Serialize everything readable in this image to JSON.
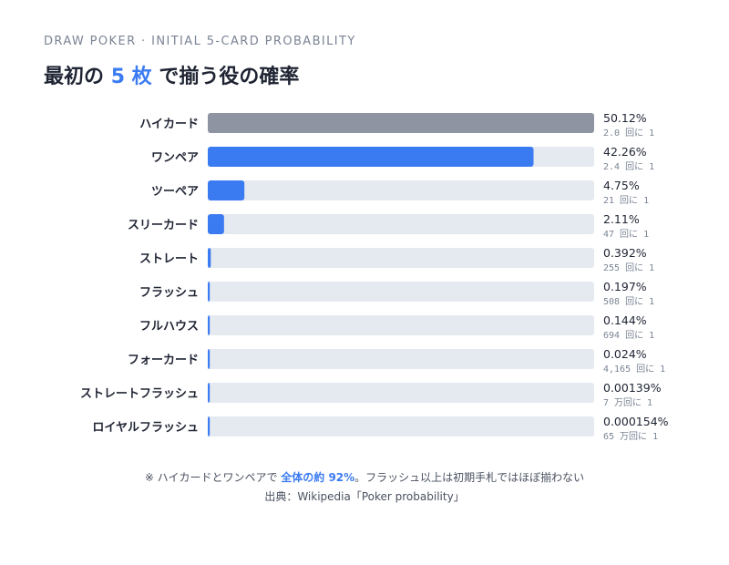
{
  "header": {
    "kicker": "DRAW POKER · INITIAL 5-CARD PROBABILITY",
    "title_prefix": "最初の",
    "title_accent": "5 枚",
    "title_suffix": "で揃う役の確率"
  },
  "colors": {
    "top_bar": "#8e94a2",
    "bar": "#3b7bf2",
    "track": "#e5e9f0",
    "accent": "#3b7bf2"
  },
  "chart_data": {
    "type": "bar",
    "orientation": "horizontal",
    "xlim": [
      0,
      50.12
    ],
    "categories": [
      "ハイカード",
      "ワンペア",
      "ツーペア",
      "スリーカード",
      "ストレート",
      "フラッシュ",
      "フルハウス",
      "フォーカード",
      "ストレートフラッシュ",
      "ロイヤルフラッシュ"
    ],
    "values": [
      50.12,
      42.26,
      4.75,
      2.11,
      0.392,
      0.197,
      0.144,
      0.024,
      0.00139,
      0.000154
    ],
    "value_labels": [
      "50.12%",
      "42.26%",
      "4.75%",
      "2.11%",
      "0.392%",
      "0.197%",
      "0.144%",
      "0.024%",
      "0.00139%",
      "0.000154%"
    ],
    "odds_labels": [
      "2.0 回に 1",
      "2.4 回に 1",
      "21 回に 1",
      "47 回に 1",
      "255 回に 1",
      "508 回に 1",
      "694 回に 1",
      "4,165 回に 1",
      "7 万回に 1",
      "65 万回に 1"
    ]
  },
  "footnote": {
    "prefix": "※ ハイカードとワンペアで ",
    "highlight": "全体の約 92%",
    "suffix": "。フラッシュ以上は初期手札ではほぼ揃わない"
  },
  "source": "出典：Wikipedia「Poker probability」"
}
